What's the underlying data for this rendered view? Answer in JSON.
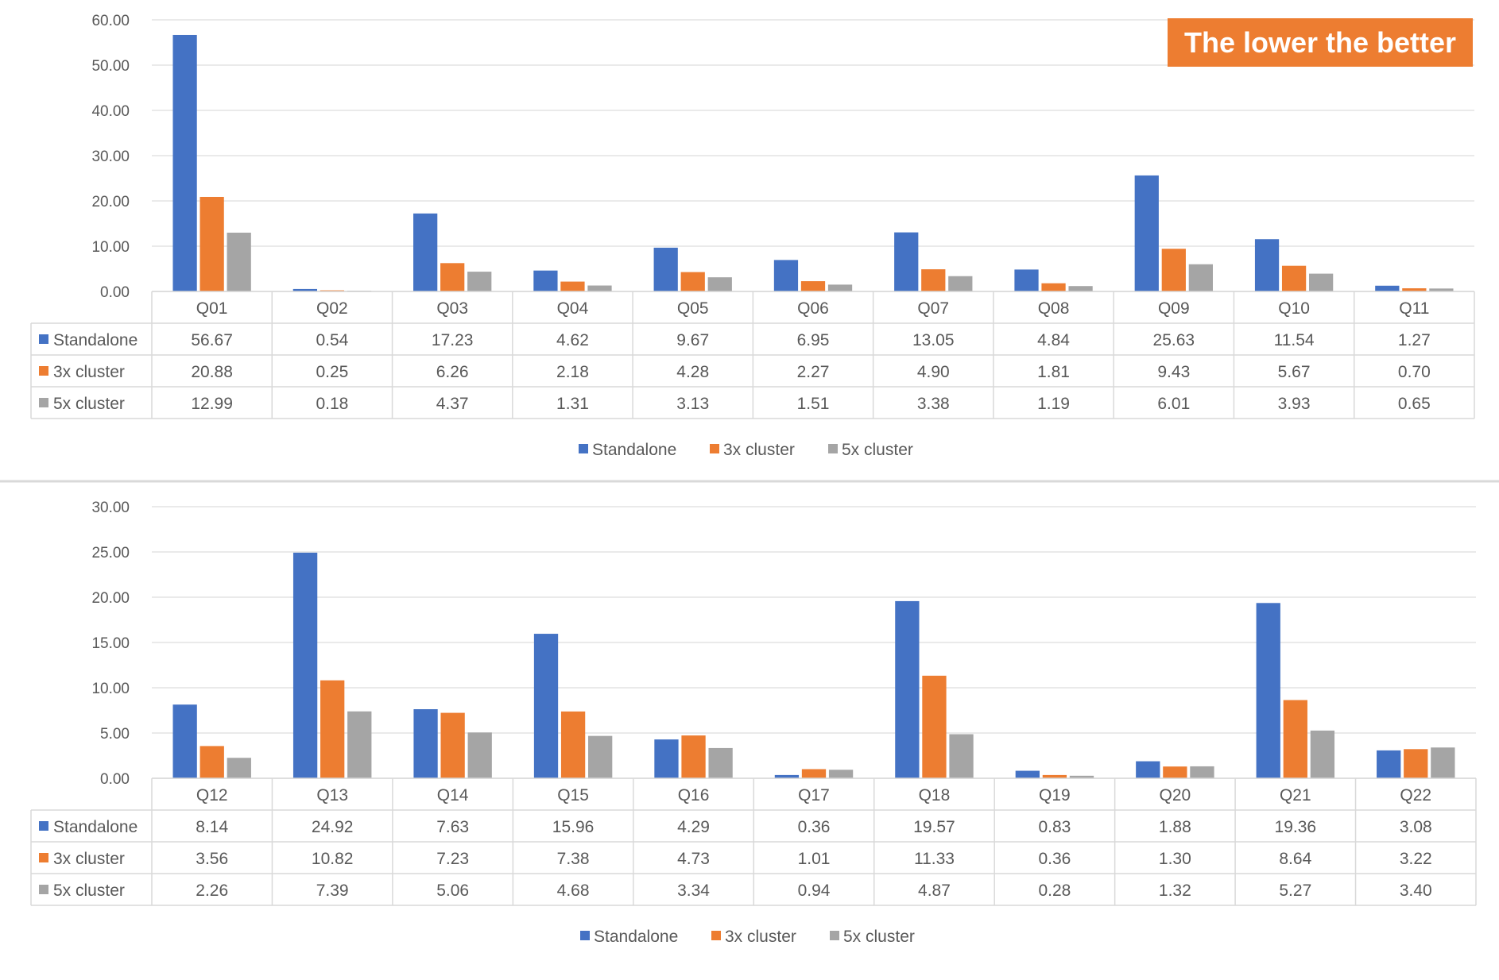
{
  "callout": {
    "text": "The lower the better",
    "bg": "#ED7D31",
    "color": "#FFFFFF"
  },
  "series_colors": {
    "Standalone": "#4472C4",
    "3x cluster": "#ED7D31",
    "5x cluster": "#A5A5A5"
  },
  "chart_data": [
    {
      "type": "bar",
      "categories": [
        "Q01",
        "Q02",
        "Q03",
        "Q04",
        "Q05",
        "Q06",
        "Q07",
        "Q08",
        "Q09",
        "Q10",
        "Q11"
      ],
      "series": [
        {
          "name": "Standalone",
          "values": [
            56.67,
            0.54,
            17.23,
            4.62,
            9.67,
            6.95,
            13.05,
            4.84,
            25.63,
            11.54,
            1.27
          ]
        },
        {
          "name": "3x cluster",
          "values": [
            20.88,
            0.25,
            6.26,
            2.18,
            4.28,
            2.27,
            4.9,
            1.81,
            9.43,
            5.67,
            0.7
          ]
        },
        {
          "name": "5x cluster",
          "values": [
            12.99,
            0.18,
            4.37,
            1.31,
            3.13,
            1.51,
            3.38,
            1.19,
            6.01,
            3.93,
            0.65
          ]
        }
      ],
      "yticks": [
        "0.00",
        "10.00",
        "20.00",
        "30.00",
        "40.00",
        "50.00",
        "60.00"
      ],
      "ylim": [
        0,
        60
      ],
      "grid": true,
      "data_table": true,
      "legend": [
        "Standalone",
        "3x cluster",
        "5x cluster"
      ],
      "legend_position": "bottom"
    },
    {
      "type": "bar",
      "categories": [
        "Q12",
        "Q13",
        "Q14",
        "Q15",
        "Q16",
        "Q17",
        "Q18",
        "Q19",
        "Q20",
        "Q21",
        "Q22"
      ],
      "series": [
        {
          "name": "Standalone",
          "values": [
            8.14,
            24.92,
            7.63,
            15.96,
            4.29,
            0.36,
            19.57,
            0.83,
            1.88,
            19.36,
            3.08
          ]
        },
        {
          "name": "3x cluster",
          "values": [
            3.56,
            10.82,
            7.23,
            7.38,
            4.73,
            1.01,
            11.33,
            0.36,
            1.3,
            8.64,
            3.22
          ]
        },
        {
          "name": "5x cluster",
          "values": [
            2.26,
            7.39,
            5.06,
            4.68,
            3.34,
            0.94,
            4.87,
            0.28,
            1.32,
            5.27,
            3.4
          ]
        }
      ],
      "yticks": [
        "0.00",
        "5.00",
        "10.00",
        "15.00",
        "20.00",
        "25.00",
        "30.00"
      ],
      "ylim": [
        0,
        30
      ],
      "grid": true,
      "data_table": true,
      "legend": [
        "Standalone",
        "3x cluster",
        "5x cluster"
      ],
      "legend_position": "bottom"
    }
  ]
}
